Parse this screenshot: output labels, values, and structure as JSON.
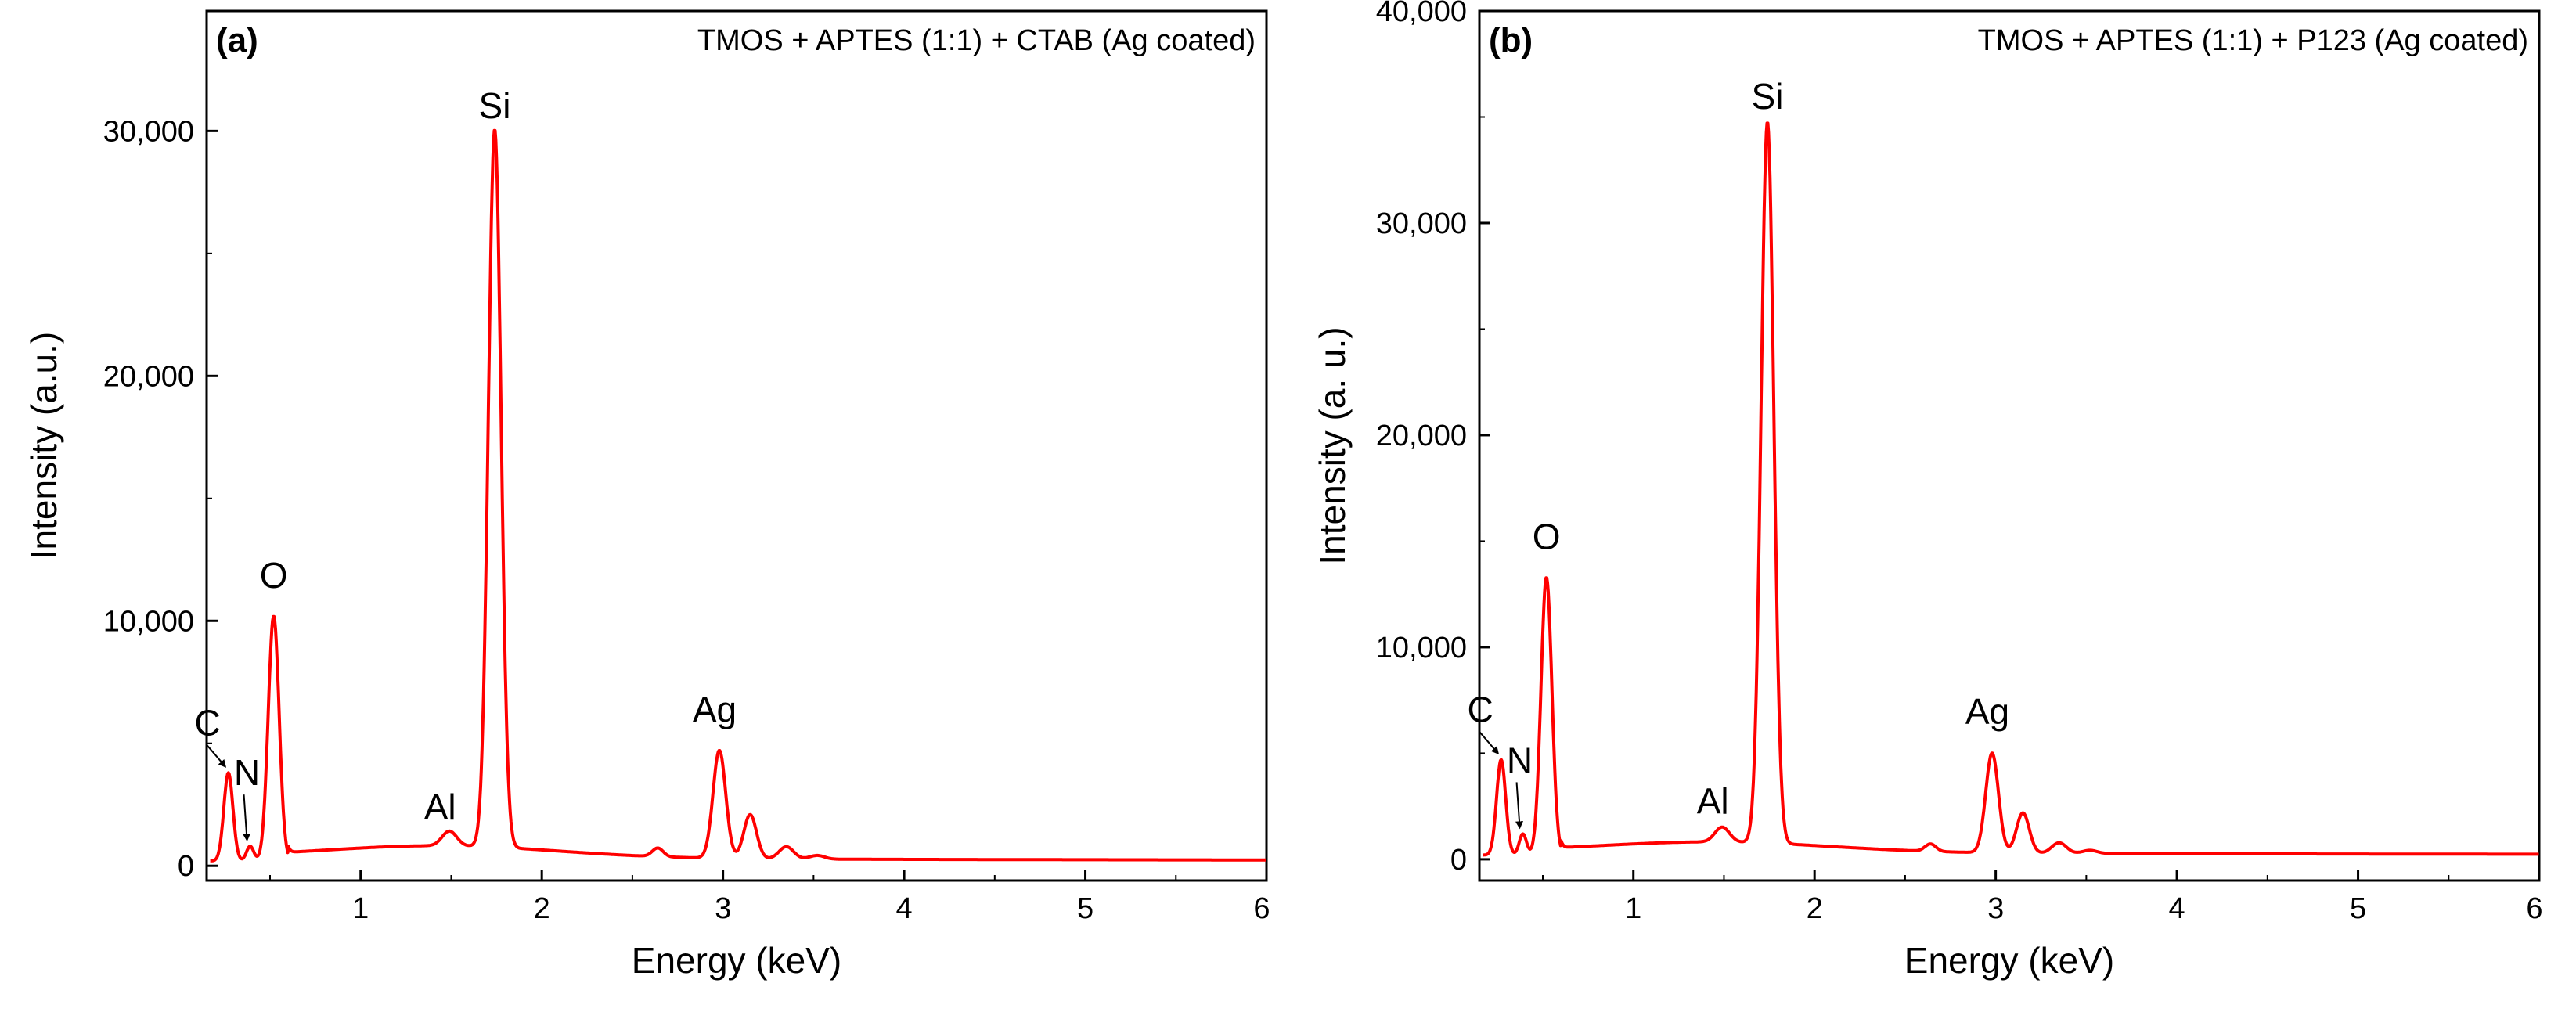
{
  "chart_data": [
    {
      "type": "line",
      "panel_label": "(a)",
      "title": "TMOS + APTES (1:1) + CTAB (Ag coated)",
      "xlabel": "Energy (keV)",
      "ylabel": "Intensity (a.u.)",
      "xlim": [
        0.15,
        6.0
      ],
      "ylim": [
        -600,
        34900
      ],
      "xticks": [
        1,
        2,
        3,
        4,
        5,
        6
      ],
      "yticks": [
        0,
        10000,
        20000,
        30000
      ],
      "ytick_labels": [
        "0",
        "10,000",
        "20,000",
        "30,000"
      ],
      "line_color": "#ff0000",
      "series": [
        {
          "name": "EDS spectrum",
          "baseline": 200,
          "peaks": [
            {
              "element": "C",
              "x": 0.27,
              "y": 3800,
              "width": 0.025
            },
            {
              "element": "N",
              "x": 0.39,
              "y": 800,
              "width": 0.02
            },
            {
              "element": "O",
              "x": 0.52,
              "y": 10200,
              "width": 0.03
            },
            {
              "element": "Al",
              "x": 1.49,
              "y": 800,
              "width": 0.04
            },
            {
              "element": "Si",
              "x": 1.74,
              "y": 29500,
              "width": 0.035
            },
            {
              "element": "",
              "x": 2.64,
              "y": 550,
              "width": 0.03
            },
            {
              "element": "Ag",
              "x": 2.98,
              "y": 4600,
              "width": 0.035
            },
            {
              "element": "",
              "x": 3.15,
              "y": 2000,
              "width": 0.035
            },
            {
              "element": "",
              "x": 3.35,
              "y": 700,
              "width": 0.04
            },
            {
              "element": "",
              "x": 3.52,
              "y": 350,
              "width": 0.04
            }
          ]
        }
      ],
      "peak_labels": [
        {
          "text": "C",
          "x": 0.27,
          "y": 3800
        },
        {
          "text": "N",
          "x": 0.39,
          "y": 800
        },
        {
          "text": "O",
          "x": 0.52,
          "y": 10200
        },
        {
          "text": "Al",
          "x": 1.49,
          "y": 800
        },
        {
          "text": "Si",
          "x": 1.74,
          "y": 29500
        },
        {
          "text": "Ag",
          "x": 2.98,
          "y": 4600
        }
      ]
    },
    {
      "type": "line",
      "panel_label": "(b)",
      "title": "TMOS + APTES (1:1) + P123 (Ag coated)",
      "xlabel": "Energy (keV)",
      "ylabel": "Intensity (a. u.)",
      "xlim": [
        0.15,
        6.0
      ],
      "ylim": [
        -1000,
        40000
      ],
      "xticks": [
        1,
        2,
        3,
        4,
        5,
        6
      ],
      "yticks": [
        0,
        10000,
        20000,
        30000,
        40000
      ],
      "ytick_labels": [
        "0",
        "10,000",
        "20,000",
        "30,000",
        "40,000"
      ],
      "line_color": "#ff0000",
      "series": [
        {
          "name": "EDS spectrum",
          "baseline": 200,
          "peaks": [
            {
              "element": "C",
              "x": 0.27,
              "y": 4700,
              "width": 0.025
            },
            {
              "element": "N",
              "x": 0.39,
              "y": 1200,
              "width": 0.02
            },
            {
              "element": "O",
              "x": 0.52,
              "y": 13300,
              "width": 0.03
            },
            {
              "element": "Al",
              "x": 1.49,
              "y": 900,
              "width": 0.04
            },
            {
              "element": "Si",
              "x": 1.74,
              "y": 34200,
              "width": 0.035
            },
            {
              "element": "",
              "x": 2.64,
              "y": 550,
              "width": 0.03
            },
            {
              "element": "Ag",
              "x": 2.98,
              "y": 4900,
              "width": 0.035
            },
            {
              "element": "",
              "x": 3.15,
              "y": 2100,
              "width": 0.035
            },
            {
              "element": "",
              "x": 3.35,
              "y": 700,
              "width": 0.04
            },
            {
              "element": "",
              "x": 3.52,
              "y": 350,
              "width": 0.04
            }
          ]
        }
      ],
      "peak_labels": [
        {
          "text": "C",
          "x": 0.27,
          "y": 4700
        },
        {
          "text": "N",
          "x": 0.39,
          "y": 1200
        },
        {
          "text": "O",
          "x": 0.52,
          "y": 13300
        },
        {
          "text": "Al",
          "x": 1.49,
          "y": 900
        },
        {
          "text": "Si",
          "x": 1.74,
          "y": 34200
        },
        {
          "text": "Ag",
          "x": 2.98,
          "y": 4900
        }
      ]
    }
  ]
}
